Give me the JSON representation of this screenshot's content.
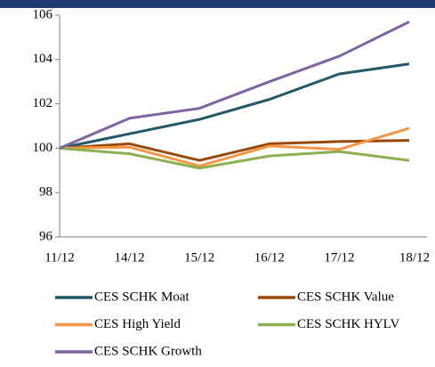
{
  "chart_data": {
    "type": "line",
    "categories": [
      "11/12",
      "14/12",
      "15/12",
      "16/12",
      "17/12",
      "18/12"
    ],
    "series": [
      {
        "name": "CES SCHK Moat",
        "color": "#215967",
        "values": [
          100,
          100.65,
          101.3,
          102.2,
          103.35,
          103.8
        ]
      },
      {
        "name": "CES SCHK Value",
        "color": "#984807",
        "values": [
          100,
          100.2,
          99.45,
          100.2,
          100.3,
          100.35
        ]
      },
      {
        "name": "CES High Yield",
        "color": "#f79646",
        "values": [
          100,
          100.05,
          99.2,
          100.1,
          99.95,
          100.9
        ]
      },
      {
        "name": "CES SCHK HYLV",
        "color": "#8cb050",
        "values": [
          100,
          99.75,
          99.1,
          99.65,
          99.85,
          99.45
        ]
      },
      {
        "name": "CES SCHK Growth",
        "color": "#8064a2",
        "values": [
          100,
          101.35,
          101.8,
          103.0,
          104.15,
          105.7
        ]
      }
    ],
    "ylim": [
      96,
      106
    ],
    "yticks": [
      96,
      98,
      100,
      102,
      104,
      106
    ],
    "grid": false,
    "legend": "bottom"
  }
}
